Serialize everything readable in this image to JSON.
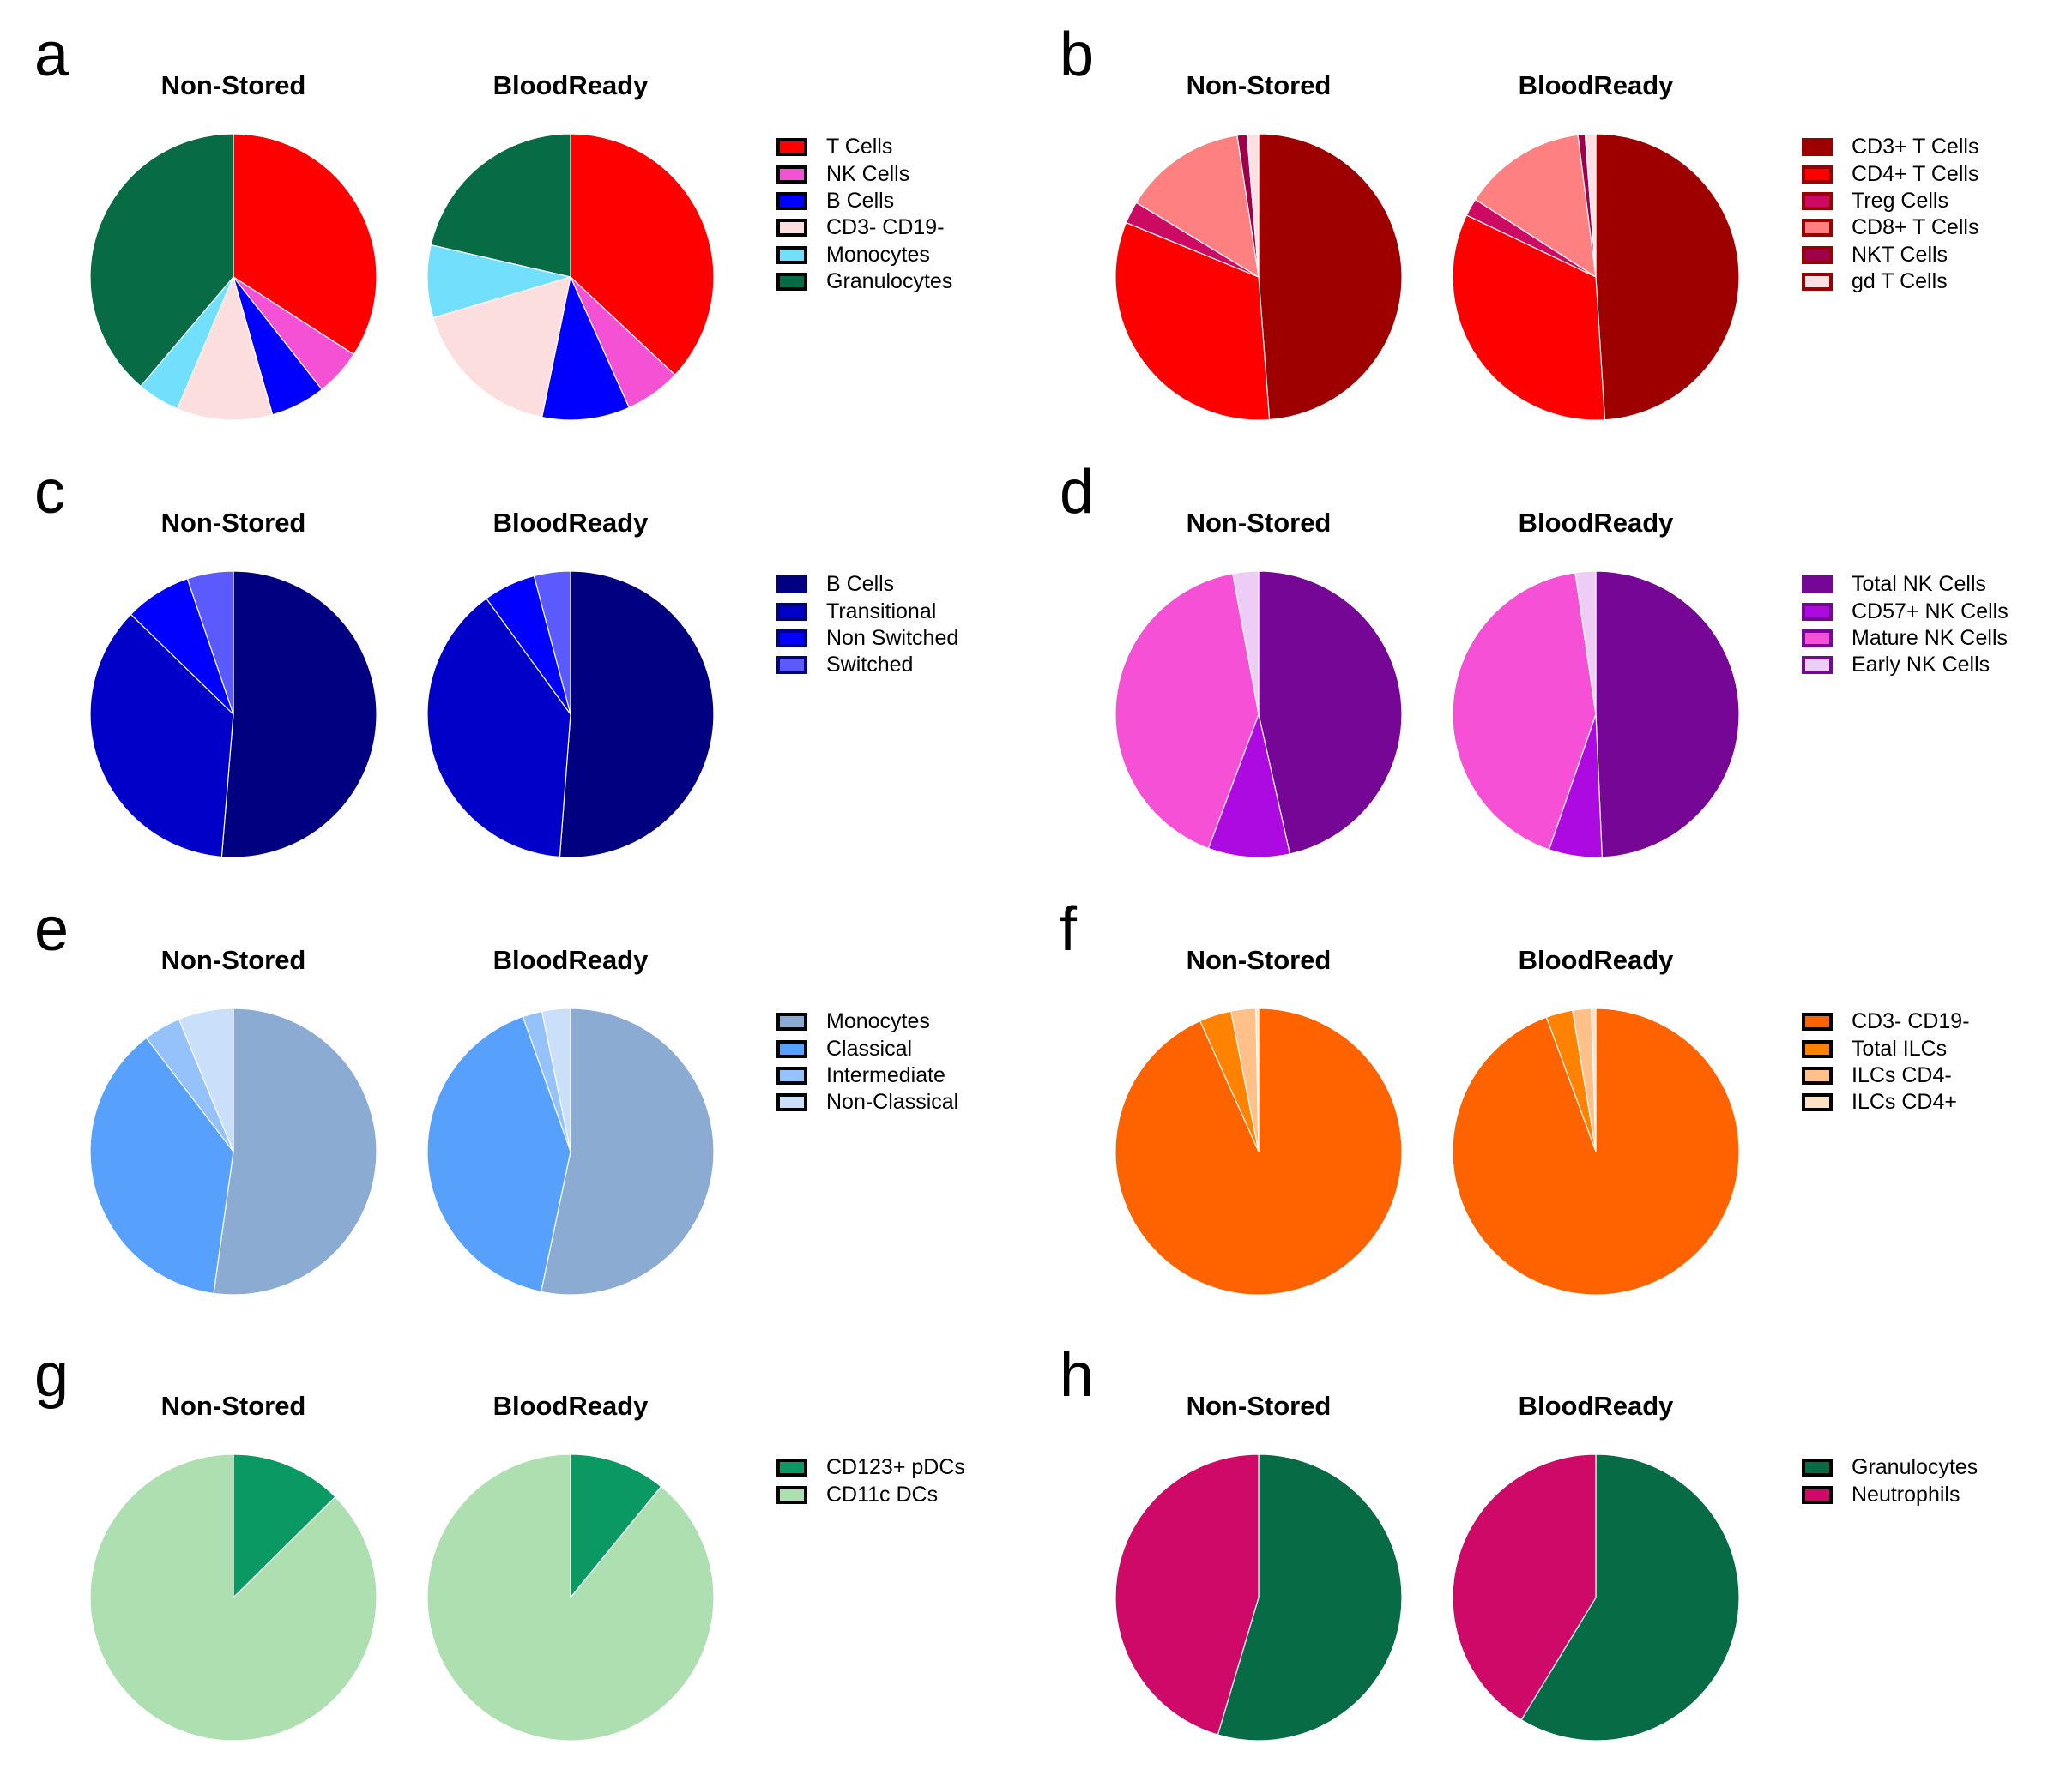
{
  "chart_data": [
    {
      "type": "pie",
      "panel": "a",
      "legend_border": "#000000",
      "categories": [
        "T Cells",
        "NK Cells",
        "B Cells",
        "CD3- CD19-",
        "Monocytes",
        "Granulocytes"
      ],
      "colors": [
        "#FF0000",
        "#F451D4",
        "#0000FF",
        "#FCDEDF",
        "#72DFFC",
        "#076B46"
      ],
      "series": [
        {
          "name": "Non-Stored",
          "values": [
            34.1,
            5.3,
            6.2,
            10.8,
            4.8,
            38.8
          ]
        },
        {
          "name": "BloodReady",
          "values": [
            37.0,
            6.3,
            9.9,
            17.2,
            8.2,
            21.4
          ]
        }
      ],
      "legend_position": "right"
    },
    {
      "type": "pie",
      "panel": "b",
      "legend_border": "#990000",
      "categories": [
        "CD3+ T Cells",
        "CD4+ T Cells",
        "Treg Cells",
        "CD8+ T Cells",
        "NKT Cells",
        "gd T Cells"
      ],
      "colors": [
        "#9E0000",
        "#FF0000",
        "#CC0A64",
        "#FF8080",
        "#9E004A",
        "#FFE0E2"
      ],
      "series": [
        {
          "name": "Non-Stored",
          "values": [
            48.8,
            32.4,
            2.5,
            13.9,
            1.1,
            1.3
          ]
        },
        {
          "name": "BloodReady",
          "values": [
            49.0,
            33.1,
            2.0,
            13.9,
            0.8,
            1.2
          ]
        }
      ],
      "legend_position": "right"
    },
    {
      "type": "pie",
      "panel": "c",
      "legend_border": "#000080",
      "categories": [
        "B Cells",
        "Transitional",
        "Non Switched",
        "Switched"
      ],
      "colors": [
        "#000080",
        "#0000C8",
        "#0000FF",
        "#5A5AFF"
      ],
      "series": [
        {
          "name": "Non-Stored",
          "values": [
            51.3,
            36.0,
            7.5,
            5.2
          ]
        },
        {
          "name": "BloodReady",
          "values": [
            51.2,
            38.8,
            5.9,
            4.1
          ]
        }
      ],
      "legend_position": "right"
    },
    {
      "type": "pie",
      "panel": "d",
      "legend_border": "#760696",
      "categories": [
        "Total NK Cells",
        "CD57+ NK Cells",
        "Mature NK Cells",
        "Early NK Cells"
      ],
      "colors": [
        "#760696",
        "#AD0AE1",
        "#F651D6",
        "#EDCCF6"
      ],
      "series": [
        {
          "name": "Non-Stored",
          "values": [
            46.5,
            9.2,
            41.4,
            2.9
          ]
        },
        {
          "name": "BloodReady",
          "values": [
            49.3,
            6.0,
            42.4,
            2.3
          ]
        }
      ],
      "legend_position": "right"
    },
    {
      "type": "pie",
      "panel": "e",
      "legend_border": "#000000",
      "categories": [
        "Monocytes",
        "Classical",
        "Intermediate",
        "Non-Classical"
      ],
      "colors": [
        "#8CABD3",
        "#57A0FC",
        "#96C2FC",
        "#C9DFFA"
      ],
      "series": [
        {
          "name": "Non-Stored",
          "values": [
            52.2,
            37.4,
            4.2,
            6.2
          ]
        },
        {
          "name": "BloodReady",
          "values": [
            53.3,
            41.3,
            2.2,
            3.2
          ]
        }
      ],
      "legend_position": "right"
    },
    {
      "type": "pie",
      "panel": "f",
      "legend_border": "#000000",
      "categories": [
        "CD3- CD19-",
        "Total ILCs",
        "ILCs CD4-",
        "ILCs CD4+"
      ],
      "colors": [
        "#FF6300",
        "#FF8300",
        "#FFC189",
        "#FFE1C6"
      ],
      "series": [
        {
          "name": "Non-Stored",
          "values": [
            93.3,
            3.6,
            2.8,
            0.3
          ]
        },
        {
          "name": "BloodReady",
          "values": [
            94.4,
            3.0,
            2.1,
            0.5
          ]
        }
      ],
      "legend_position": "right"
    },
    {
      "type": "pie",
      "panel": "g",
      "legend_border": "#000000",
      "categories": [
        "CD123+ pDCs",
        "CD11c DCs"
      ],
      "colors": [
        "#0A9962",
        "#AEDFB0"
      ],
      "series": [
        {
          "name": "Non-Stored",
          "values": [
            12.6,
            87.4
          ]
        },
        {
          "name": "BloodReady",
          "values": [
            10.9,
            89.1
          ]
        }
      ],
      "legend_position": "right"
    },
    {
      "type": "pie",
      "panel": "h",
      "legend_border": "#000000",
      "categories": [
        "Granulocytes",
        "Neutrophils"
      ],
      "colors": [
        "#076B46",
        "#CE0968"
      ],
      "series": [
        {
          "name": "Non-Stored",
          "values": [
            54.6,
            45.4
          ]
        },
        {
          "name": "BloodReady",
          "values": [
            58.7,
            41.3
          ]
        }
      ],
      "legend_position": "right"
    }
  ]
}
